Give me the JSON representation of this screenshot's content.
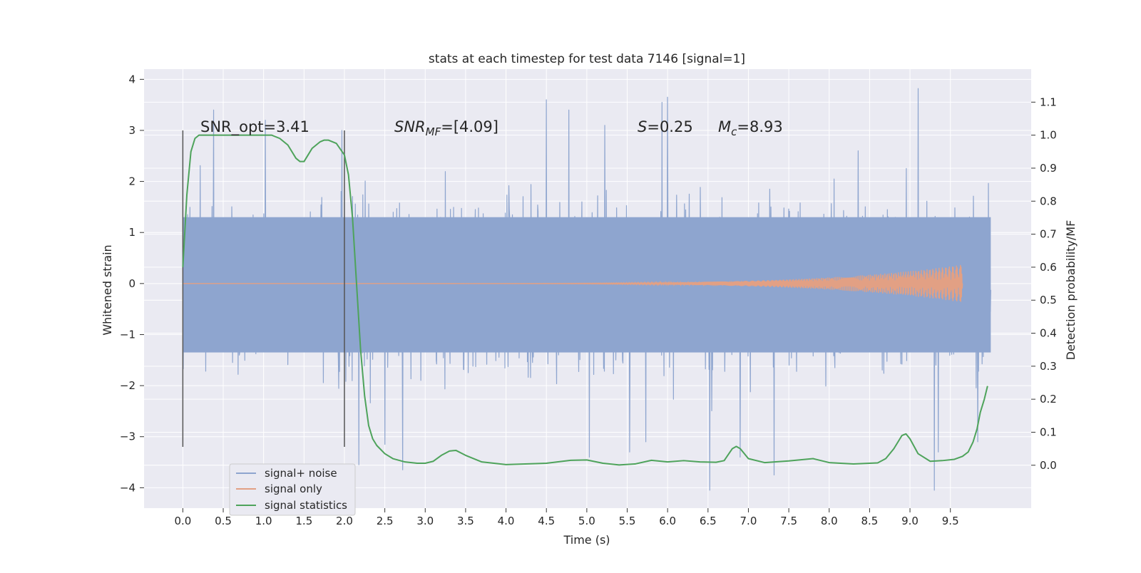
{
  "figure": {
    "background": "#ffffff",
    "plot_background": "#eaeaf2",
    "grid_color": "#ffffff"
  },
  "chart_data": {
    "type": "line",
    "title": "stats at each timestep for test data 7146 [signal=1]",
    "xlabel": "Time (s)",
    "ylabel": "Whitened strain",
    "ylabel_right": "Detection probability/MF",
    "xlim": [
      -0.48,
      10.5
    ],
    "ylim": [
      -4.4,
      4.2
    ],
    "ylim_right": [
      -0.13,
      1.2
    ],
    "x_ticks": [
      "0.0",
      "0.5",
      "1.0",
      "1.5",
      "2.0",
      "2.5",
      "3.0",
      "3.5",
      "4.0",
      "4.5",
      "5.0",
      "5.5",
      "6.0",
      "6.5",
      "7.0",
      "7.5",
      "8.0",
      "8.5",
      "9.0",
      "9.5"
    ],
    "y_ticks": [
      "−4",
      "−3",
      "−2",
      "−1",
      "0",
      "1",
      "2",
      "3",
      "4"
    ],
    "y_ticks_right": [
      "0.0",
      "0.1",
      "0.2",
      "0.3",
      "0.4",
      "0.5",
      "0.6",
      "0.7",
      "0.8",
      "0.9",
      "1.0",
      "1.1"
    ],
    "grid": true,
    "legend_position": "lower-left",
    "annotations": {
      "snr_opt": "SNR_opt=3.41",
      "snr_mf_main": "SNR",
      "snr_mf_sub": "MF",
      "snr_mf_value": "=[4.09]",
      "s_symbol": "S",
      "s_value": "=0.25",
      "mc_main": "M",
      "mc_sub": "c",
      "mc_value": "=8.93"
    },
    "window_markers": {
      "x": [
        0.0,
        2.0
      ],
      "y_range": [
        -3.2,
        3.0
      ],
      "color": "#555555"
    },
    "series": [
      {
        "name": "signal+ noise",
        "color": "#8ea5cf",
        "x_range": [
          0.0,
          10.0
        ],
        "sample_count": 2048,
        "band_ylim": [
          -1.35,
          1.3
        ],
        "max_excursion_up": 3.82,
        "max_excursion_down": -4.05,
        "spikes": [
          [
            0.38,
            3.4
          ],
          [
            1.02,
            3.2
          ],
          [
            1.97,
            3.0
          ],
          [
            2.18,
            -3.55
          ],
          [
            2.5,
            -3.15
          ],
          [
            2.72,
            -3.65
          ],
          [
            4.5,
            3.6
          ],
          [
            4.78,
            3.4
          ],
          [
            5.03,
            -3.4
          ],
          [
            5.22,
            3.1
          ],
          [
            5.53,
            -3.3
          ],
          [
            5.73,
            -3.1
          ],
          [
            5.93,
            3.55
          ],
          [
            6.0,
            3.65
          ],
          [
            6.52,
            -4.05
          ],
          [
            6.9,
            -3.4
          ],
          [
            7.32,
            -3.75
          ],
          [
            8.36,
            2.6
          ],
          [
            9.1,
            3.82
          ],
          [
            9.3,
            -4.05
          ],
          [
            9.35,
            -3.3
          ],
          [
            9.84,
            -3.1
          ]
        ]
      },
      {
        "name": "signal only",
        "color": "#e2a084",
        "x_range": [
          0.0,
          9.65
        ],
        "envelope_start": 0.0,
        "envelope_end": 0.37,
        "start_frequency_hz": 16,
        "end_frequency_hz": 60
      },
      {
        "name": "signal statistics",
        "color": "#4ea35b",
        "axis": "right",
        "x": [
          0.0,
          0.05,
          0.1,
          0.15,
          0.2,
          0.3,
          0.5,
          0.7,
          0.9,
          1.1,
          1.2,
          1.3,
          1.4,
          1.45,
          1.5,
          1.55,
          1.6,
          1.7,
          1.75,
          1.8,
          1.9,
          2.0,
          2.05,
          2.1,
          2.15,
          2.2,
          2.25,
          2.3,
          2.35,
          2.4,
          2.5,
          2.6,
          2.75,
          2.9,
          3.0,
          3.1,
          3.2,
          3.3,
          3.38,
          3.5,
          3.7,
          4.0,
          4.5,
          4.8,
          5.0,
          5.2,
          5.4,
          5.6,
          5.8,
          6.0,
          6.2,
          6.4,
          6.6,
          6.7,
          6.8,
          6.85,
          6.9,
          7.0,
          7.2,
          7.5,
          7.8,
          8.0,
          8.3,
          8.6,
          8.7,
          8.8,
          8.9,
          8.95,
          9.0,
          9.1,
          9.25,
          9.4,
          9.55,
          9.65,
          9.72,
          9.78,
          9.83,
          9.87,
          9.92,
          9.96
        ],
        "y": [
          0.6,
          0.82,
          0.95,
          0.99,
          1.0,
          1.0,
          1.0,
          1.0,
          1.0,
          1.0,
          0.99,
          0.97,
          0.93,
          0.92,
          0.92,
          0.94,
          0.96,
          0.98,
          0.985,
          0.985,
          0.975,
          0.94,
          0.88,
          0.75,
          0.55,
          0.35,
          0.21,
          0.12,
          0.08,
          0.06,
          0.035,
          0.02,
          0.01,
          0.006,
          0.006,
          0.012,
          0.03,
          0.043,
          0.045,
          0.03,
          0.01,
          0.002,
          0.006,
          0.015,
          0.016,
          0.006,
          0.001,
          0.004,
          0.015,
          0.01,
          0.014,
          0.01,
          0.009,
          0.014,
          0.05,
          0.057,
          0.05,
          0.02,
          0.008,
          0.013,
          0.02,
          0.008,
          0.004,
          0.007,
          0.02,
          0.05,
          0.09,
          0.095,
          0.08,
          0.035,
          0.012,
          0.014,
          0.018,
          0.027,
          0.04,
          0.07,
          0.11,
          0.16,
          0.2,
          0.24
        ]
      }
    ]
  }
}
